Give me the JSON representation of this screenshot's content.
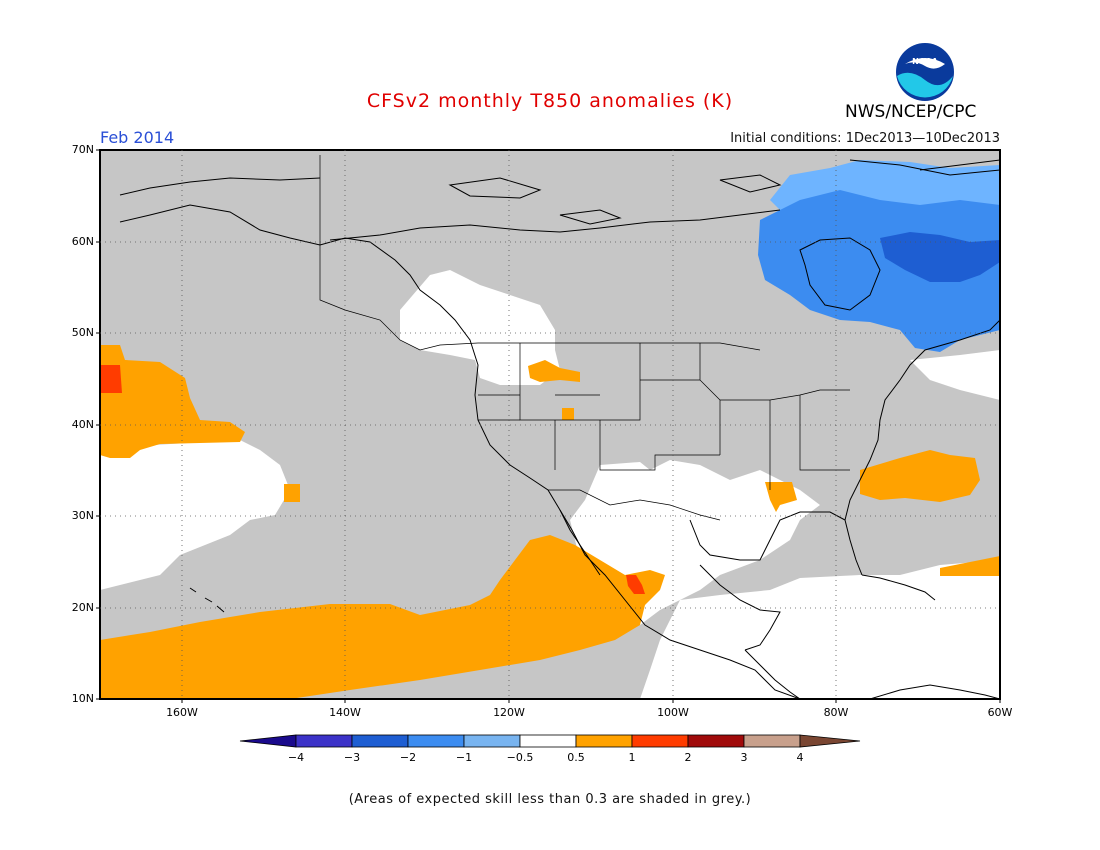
{
  "header": {
    "title": "CFSv2 monthly T850 anomalies (K)",
    "month": "Feb 2014",
    "init": "Initial conditions: 1Dec2013—10Dec2013",
    "org": "NWS/NCEP/CPC",
    "logo_text": "NOAA"
  },
  "map": {
    "lat_labels": [
      "70N",
      "60N",
      "50N",
      "40N",
      "30N",
      "20N",
      "10N"
    ],
    "lon_labels": [
      "160W",
      "140W",
      "120W",
      "100W",
      "80W",
      "60W"
    ],
    "colors": {
      "skill_grey": "#c6c6c6",
      "neutral": "#ffffff",
      "warm_0_5_1": "#ffa200",
      "warm_1_2": "#ff3c00",
      "cool_m1_m0_5": "#6eb4ff",
      "cool_m2_m1": "#3c8cf0",
      "cool_m3_m2": "#1e5ed2"
    }
  },
  "colorbar": {
    "labels": [
      "−4",
      "−3",
      "−2",
      "−1",
      "−0.5",
      "0.5",
      "1",
      "2",
      "3",
      "4"
    ],
    "colors": [
      "#1a0a8c",
      "#3c32c8",
      "#1e5ed2",
      "#3c8cf0",
      "#78b4f0",
      "#ffffff",
      "#ffa200",
      "#ff3c00",
      "#a00a0a",
      "#c8a08c",
      "#7a4632"
    ]
  },
  "footnote": "(Areas of expected skill less than 0.3 are shaded in grey.)"
}
